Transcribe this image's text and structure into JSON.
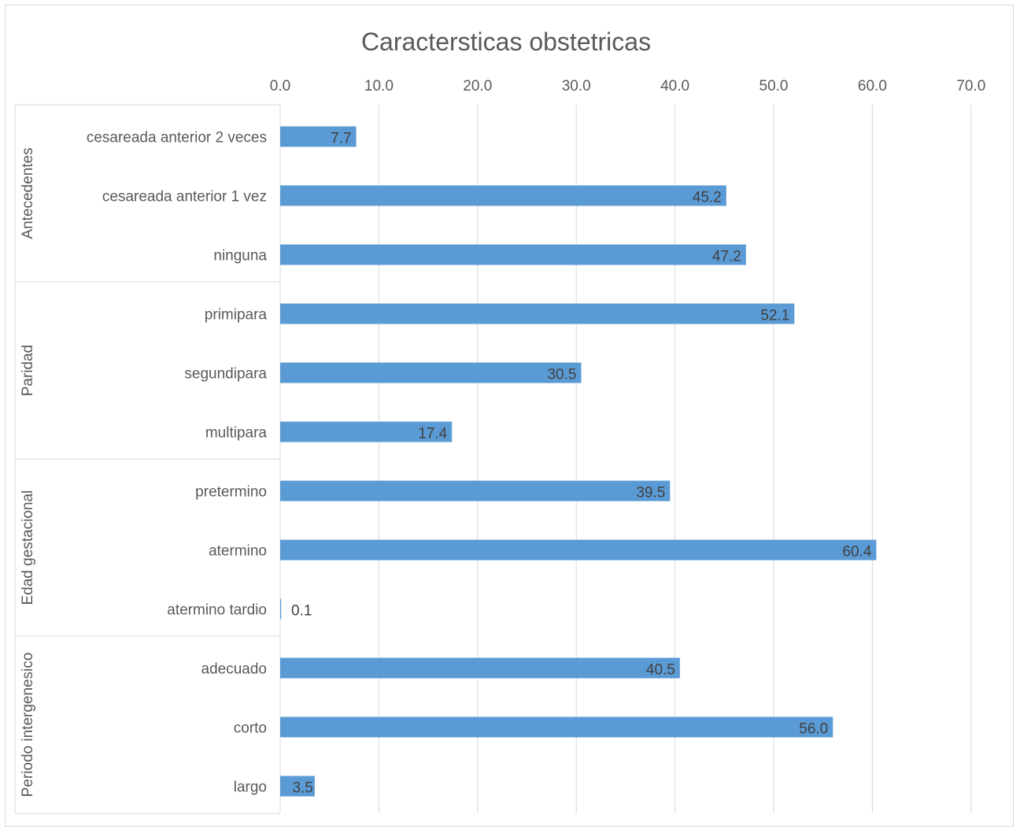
{
  "chart_data": {
    "type": "bar",
    "orientation": "horizontal",
    "title": "Caractersticas obstetricas",
    "xlim": [
      0,
      70
    ],
    "x_ticks": [
      "0.0",
      "10.0",
      "20.0",
      "30.0",
      "40.0",
      "50.0",
      "60.0",
      "70.0"
    ],
    "x_axis_position": "top",
    "grid": true,
    "bar_color": "#5b9bd5",
    "groups": [
      {
        "name": "Antecedentes",
        "categories": [
          "cesareada anterior 2 veces",
          "cesareada anterior 1 vez",
          "ninguna"
        ],
        "values": [
          7.7,
          45.2,
          47.2
        ],
        "labels": [
          "7.7",
          "45.2",
          "47.2"
        ]
      },
      {
        "name": "Paridad",
        "categories": [
          "primipara",
          "segundipara",
          "multipara"
        ],
        "values": [
          52.1,
          30.5,
          17.4
        ],
        "labels": [
          "52.1",
          "30.5",
          "17.4"
        ]
      },
      {
        "name": "Edad gestacional",
        "categories": [
          "pretermino",
          "atermino",
          "atermino tardio"
        ],
        "values": [
          39.5,
          60.4,
          0.1
        ],
        "labels": [
          "39.5",
          "60.4",
          "0.1"
        ]
      },
      {
        "name": "Periodo intergenesico",
        "categories": [
          "adecuado",
          "corto",
          "largo"
        ],
        "values": [
          40.5,
          56.0,
          3.5
        ],
        "labels": [
          "40.5",
          "56.0",
          "3.5"
        ]
      }
    ]
  }
}
